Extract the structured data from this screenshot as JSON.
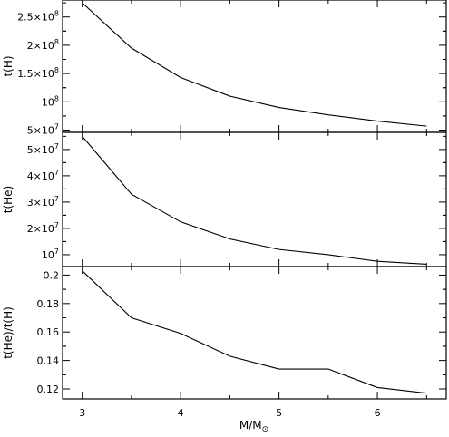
{
  "chart_data": [
    {
      "type": "line",
      "panel": "top",
      "ylabel": "t(H)",
      "x": [
        3,
        3.5,
        4,
        4.5,
        5,
        5.5,
        6,
        6.5
      ],
      "series": [
        {
          "values": [
            275000000,
            195000000,
            143000000,
            110000000,
            90000000,
            77000000,
            66000000,
            57000000
          ]
        }
      ],
      "xlim": [
        2.8,
        6.7
      ],
      "ylim": [
        46000000,
        280000000
      ],
      "yticks": [
        50000000,
        100000000,
        150000000,
        200000000,
        250000000
      ],
      "ytick_labels": [
        {
          "mantissa": "5×10",
          "exp": "7"
        },
        {
          "mantissa": "10",
          "exp": "8"
        },
        {
          "mantissa": "1.5×10",
          "exp": "8"
        },
        {
          "mantissa": "2×10",
          "exp": "8"
        },
        {
          "mantissa": "2.5×10",
          "exp": "8"
        }
      ]
    },
    {
      "type": "line",
      "panel": "middle",
      "ylabel": "t(He)",
      "x": [
        3,
        3.5,
        4,
        4.5,
        5,
        5.5,
        6,
        6.5
      ],
      "series": [
        {
          "values": [
            55000000,
            33000000,
            22500000,
            16000000,
            12000000,
            10000000,
            7500000,
            6400000
          ]
        }
      ],
      "xlim": [
        2.8,
        6.7
      ],
      "ylim": [
        5500000,
        56500000
      ],
      "yticks": [
        10000000,
        20000000,
        30000000,
        40000000,
        50000000
      ],
      "ytick_labels": [
        {
          "mantissa": "10",
          "exp": "7"
        },
        {
          "mantissa": "2×10",
          "exp": "7"
        },
        {
          "mantissa": "3×10",
          "exp": "7"
        },
        {
          "mantissa": "4×10",
          "exp": "7"
        },
        {
          "mantissa": "5×10",
          "exp": "7"
        }
      ]
    },
    {
      "type": "line",
      "panel": "bottom",
      "ylabel": "t(He)/t(H)",
      "xlabel": {
        "main": "M/M",
        "sub": "⊙"
      },
      "x": [
        3,
        3.5,
        4,
        4.5,
        5,
        5.5,
        6,
        6.5
      ],
      "series": [
        {
          "values": [
            0.203,
            0.17,
            0.159,
            0.143,
            0.134,
            0.134,
            0.121,
            0.117
          ]
        }
      ],
      "xlim": [
        2.8,
        6.7
      ],
      "ylim": [
        0.113,
        0.206
      ],
      "xticks": [
        3,
        4,
        5,
        6
      ],
      "xtick_labels": [
        "3",
        "4",
        "5",
        "6"
      ],
      "yticks": [
        0.12,
        0.14,
        0.16,
        0.18,
        0.2
      ],
      "ytick_labels": [
        "0.12",
        "0.14",
        "0.16",
        "0.18",
        "0.2"
      ]
    }
  ]
}
